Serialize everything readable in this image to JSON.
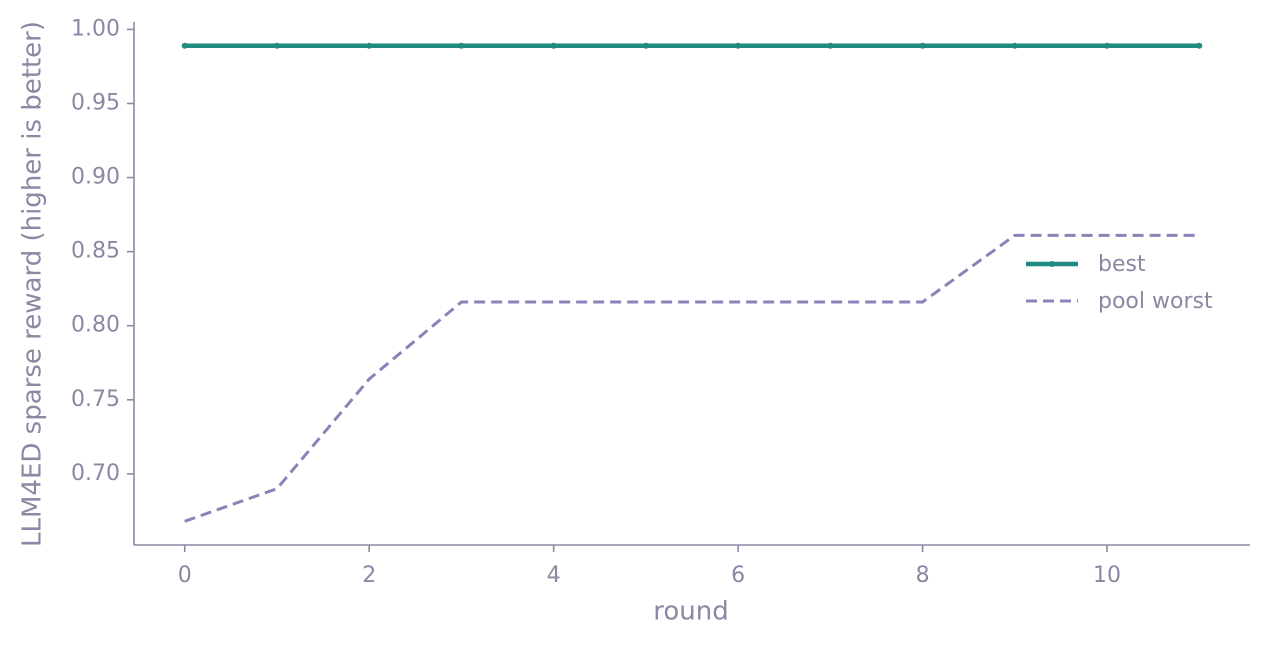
{
  "chart_data": {
    "type": "line",
    "x_label": "round",
    "y_label": "LLM4ED sparse reward (higher is better)",
    "x": [
      0,
      1,
      2,
      3,
      4,
      5,
      6,
      7,
      8,
      9,
      10,
      11
    ],
    "series": [
      {
        "name": "best",
        "color": "#1f8a80",
        "dashed": false,
        "markers": true,
        "values": [
          0.989,
          0.989,
          0.989,
          0.989,
          0.989,
          0.989,
          0.989,
          0.989,
          0.989,
          0.989,
          0.989,
          0.989
        ]
      },
      {
        "name": "pool worst",
        "color": "#8b82b8",
        "dashed": true,
        "markers": false,
        "values": [
          0.668,
          0.69,
          0.764,
          0.816,
          0.816,
          0.816,
          0.816,
          0.816,
          0.816,
          0.861,
          0.861,
          0.861
        ]
      }
    ],
    "xlim": [
      -0.55,
      11.55
    ],
    "ylim": [
      0.652,
      1.005
    ],
    "xticks": [
      0,
      2,
      4,
      6,
      8,
      10
    ],
    "yticks": [
      {
        "value": 0.7,
        "label": "0.70"
      },
      {
        "value": 0.75,
        "label": "0.75"
      },
      {
        "value": 0.8,
        "label": "0.80"
      },
      {
        "value": 0.85,
        "label": "0.85"
      },
      {
        "value": 0.9,
        "label": "0.90"
      },
      {
        "value": 0.95,
        "label": "0.95"
      },
      {
        "value": 1.0,
        "label": "1.00"
      }
    ],
    "grid": false,
    "legend": "center right"
  }
}
